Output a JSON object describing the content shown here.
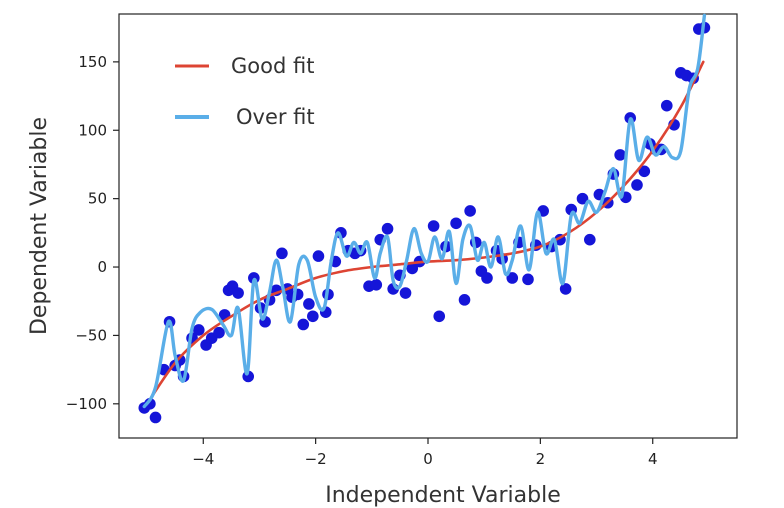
{
  "chart_data": {
    "type": "scatter",
    "title": "",
    "xlabel": "Independent Variable",
    "ylabel": "Dependent Variable",
    "xlim": [
      -5.5,
      5.5
    ],
    "ylim": [
      -125,
      185
    ],
    "xticks": [
      -4,
      -2,
      0,
      2,
      4
    ],
    "xtick_labels": [
      "−4",
      "−2",
      "0",
      "2",
      "4"
    ],
    "yticks": [
      -100,
      -50,
      0,
      50,
      100,
      150
    ],
    "ytick_labels": [
      "−100",
      "−50",
      "0",
      "50",
      "100",
      "150"
    ],
    "grid": false,
    "legend": {
      "placement": "top-left"
    },
    "colors": {
      "points": "#1515d8",
      "good_fit": "#dd4433",
      "over_fit": "#5aaee8"
    },
    "series": [
      {
        "name": "Good fit",
        "kind": "line",
        "x": [
          -5.0,
          -4.5,
          -4.0,
          -3.5,
          -3.0,
          -2.5,
          -2.0,
          -1.5,
          -1.0,
          -0.5,
          0.0,
          0.5,
          1.0,
          1.5,
          2.0,
          2.5,
          3.0,
          3.5,
          4.0,
          4.5,
          4.9
        ],
        "y": [
          -100,
          -70,
          -50,
          -36,
          -24,
          -16,
          -8,
          -3,
          0,
          2,
          4,
          5,
          7,
          10,
          15,
          25,
          40,
          60,
          85,
          117,
          150
        ]
      },
      {
        "name": "Over fit",
        "kind": "line",
        "x": [
          -5.05,
          -4.85,
          -4.62,
          -4.5,
          -4.35,
          -4.2,
          -4.05,
          -3.85,
          -3.65,
          -3.5,
          -3.38,
          -3.22,
          -3.1,
          -2.95,
          -2.82,
          -2.7,
          -2.58,
          -2.45,
          -2.3,
          -2.15,
          -2.0,
          -1.85,
          -1.72,
          -1.6,
          -1.45,
          -1.32,
          -1.2,
          -1.08,
          -0.95,
          -0.85,
          -0.72,
          -0.62,
          -0.5,
          -0.38,
          -0.25,
          -0.12,
          0.0,
          0.12,
          0.25,
          0.38,
          0.5,
          0.62,
          0.75,
          0.88,
          1.0,
          1.12,
          1.25,
          1.38,
          1.5,
          1.65,
          1.8,
          1.95,
          2.1,
          2.25,
          2.4,
          2.55,
          2.7,
          2.85,
          3.0,
          3.15,
          3.3,
          3.45,
          3.6,
          3.75,
          3.9,
          4.05,
          4.2,
          4.35,
          4.5,
          4.65,
          4.8,
          4.92
        ],
        "y": [
          -102,
          -88,
          -40,
          -65,
          -83,
          -45,
          -33,
          -31,
          -42,
          -50,
          -30,
          -78,
          -10,
          -38,
          -18,
          5,
          -16,
          -40,
          2,
          5,
          -22,
          -30,
          5,
          25,
          8,
          18,
          10,
          18,
          -8,
          10,
          22,
          -10,
          -14,
          5,
          28,
          10,
          4,
          22,
          6,
          26,
          -12,
          20,
          30,
          5,
          18,
          0,
          22,
          -5,
          5,
          30,
          -2,
          40,
          10,
          20,
          -12,
          38,
          32,
          48,
          40,
          55,
          72,
          52,
          108,
          78,
          95,
          82,
          88,
          80,
          85,
          130,
          145,
          184
        ]
      },
      {
        "name": "",
        "kind": "scatter",
        "x": [
          -5.05,
          -4.95,
          -4.85,
          -4.7,
          -4.6,
          -4.5,
          -4.42,
          -4.35,
          -4.2,
          -4.08,
          -3.95,
          -3.85,
          -3.72,
          -3.62,
          -3.55,
          -3.48,
          -3.38,
          -3.2,
          -3.1,
          -2.98,
          -2.9,
          -2.82,
          -2.7,
          -2.6,
          -2.5,
          -2.42,
          -2.32,
          -2.22,
          -2.12,
          -2.05,
          -1.95,
          -1.82,
          -1.78,
          -1.65,
          -1.55,
          -1.42,
          -1.3,
          -1.2,
          -1.05,
          -0.92,
          -0.85,
          -0.72,
          -0.62,
          -0.5,
          -0.4,
          -0.28,
          -0.15,
          0.1,
          0.2,
          0.32,
          0.5,
          0.65,
          0.75,
          0.85,
          0.95,
          1.05,
          1.22,
          1.32,
          1.5,
          1.62,
          1.78,
          1.92,
          2.05,
          2.2,
          2.35,
          2.45,
          2.55,
          2.75,
          2.88,
          3.05,
          3.2,
          3.3,
          3.42,
          3.52,
          3.6,
          3.72,
          3.85,
          3.95,
          4.05,
          4.15,
          4.25,
          4.38,
          4.5,
          4.6,
          4.72,
          4.82,
          4.92
        ],
        "y": [
          -103,
          -100,
          -110,
          -75,
          -40,
          -72,
          -68,
          -80,
          -52,
          -46,
          -57,
          -52,
          -48,
          -35,
          -17,
          -14,
          -19,
          -80,
          -8,
          -30,
          -40,
          -24,
          -17,
          10,
          -16,
          -22,
          -20,
          -42,
          -27,
          -36,
          8,
          -33,
          -20,
          4,
          25,
          12,
          10,
          12,
          -14,
          -13,
          20,
          28,
          -16,
          -6,
          -19,
          -1,
          4,
          30,
          -36,
          15,
          32,
          -24,
          41,
          18,
          -3,
          -8,
          12,
          6,
          -8,
          18,
          -9,
          16,
          41,
          15,
          20,
          -16,
          42,
          50,
          20,
          53,
          47,
          68,
          82,
          51,
          109,
          60,
          70,
          90,
          86,
          86,
          118,
          104,
          142,
          140,
          138,
          174,
          175
        ]
      }
    ]
  }
}
